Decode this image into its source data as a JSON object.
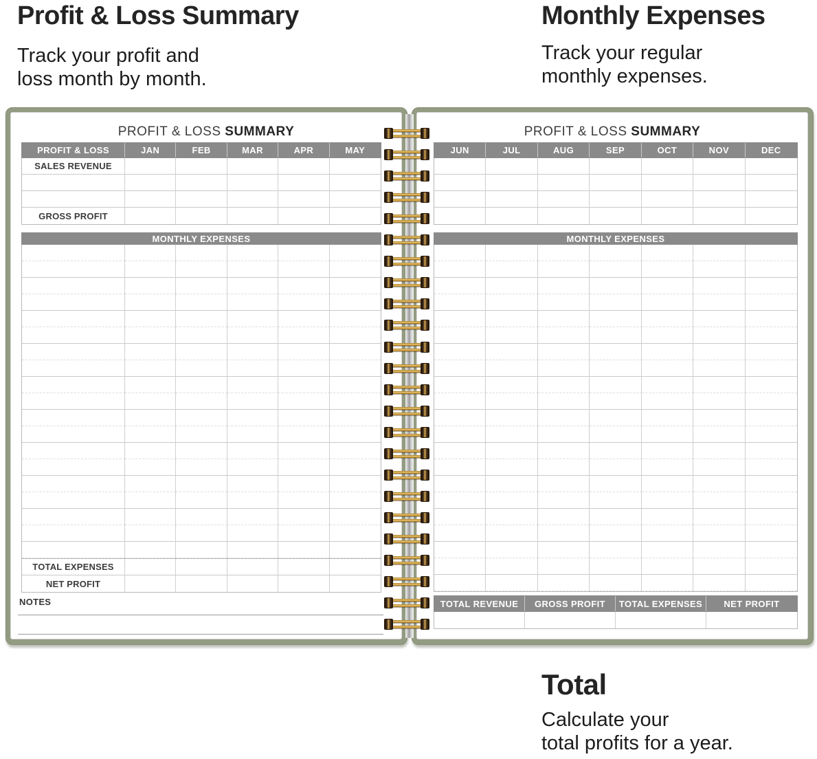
{
  "annotations": {
    "top_left": {
      "title": "Profit & Loss Summary",
      "subtitle_line1": "Track your profit and",
      "subtitle_line2": "loss month by month."
    },
    "top_right": {
      "title": "Monthly Expenses",
      "subtitle_line1": "Track your regular",
      "subtitle_line2": "monthly expenses."
    },
    "bottom_right": {
      "title": "Total",
      "subtitle_line1": "Calculate your",
      "subtitle_line2": "total profits for a year."
    }
  },
  "left_page": {
    "title_regular": "PROFIT & LOSS",
    "title_bold": "SUMMARY",
    "pl_table": {
      "header": [
        "PROFIT & LOSS",
        "JAN",
        "FEB",
        "MAR",
        "APR",
        "MAY"
      ],
      "row_labels": [
        "SALES REVENUE",
        "",
        "",
        "GROSS PROFIT"
      ]
    },
    "expenses_title": "MONTHLY EXPENSES",
    "expenses_row_count": 19,
    "totals_row_labels": [
      "TOTAL EXPENSES",
      "NET PROFIT"
    ],
    "notes_label": "NOTES",
    "notes_line_count": 2
  },
  "right_page": {
    "title_regular": "PROFIT & LOSS",
    "title_bold": "SUMMARY",
    "months_header": [
      "JUN",
      "JUL",
      "AUG",
      "SEP",
      "OCT",
      "NOV",
      "DEC"
    ],
    "months_row_count": 4,
    "expenses_title": "MONTHLY EXPENSES",
    "expenses_row_count": 21,
    "summary_header": [
      "TOTAL REVENUE",
      "GROSS PROFIT",
      "TOTAL EXPENSES",
      "NET PROFIT"
    ],
    "summary_row_count": 1
  },
  "binding": {
    "ring_count": 24
  },
  "colors": {
    "header_gray": "#8a8a8a",
    "cover_green": "#939c82",
    "binding_gold": "#cf9c3a",
    "grid_line": "#c9c9c9",
    "text_dark": "#242424"
  }
}
